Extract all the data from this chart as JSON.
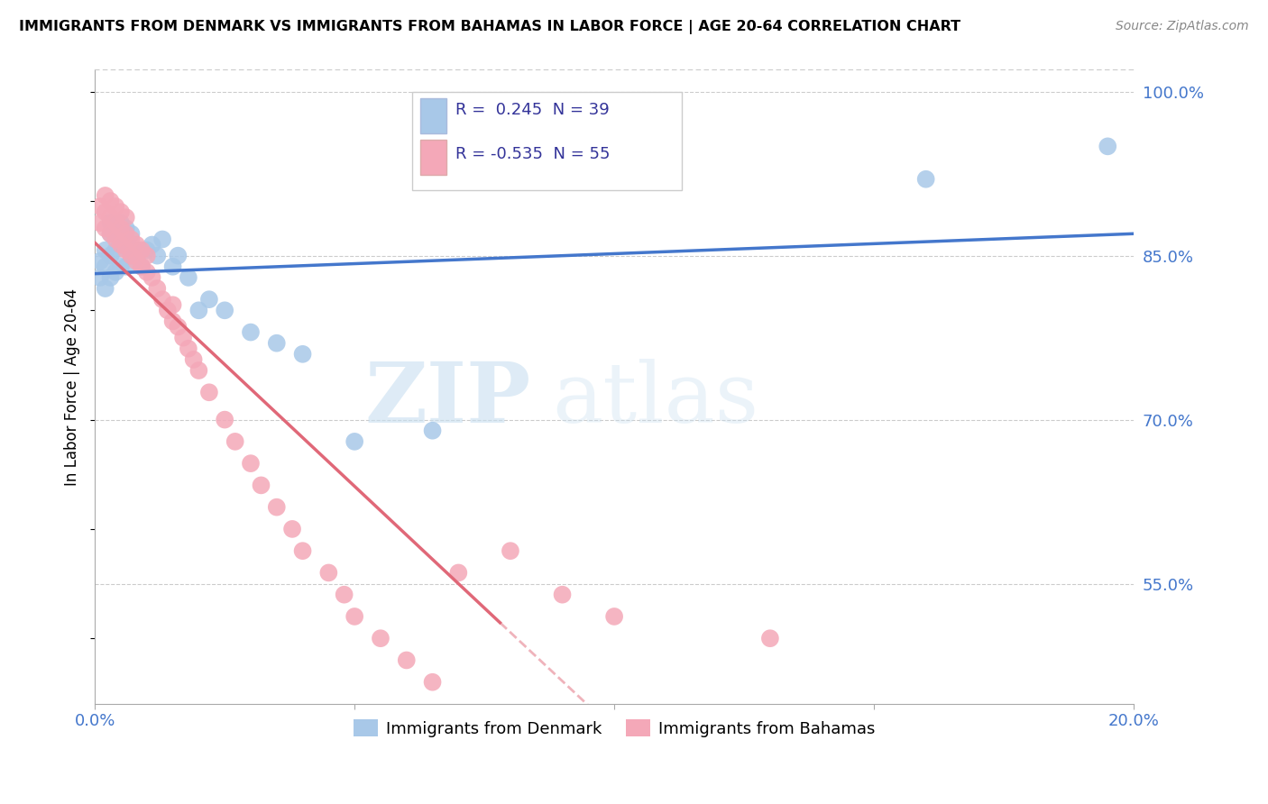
{
  "title": "IMMIGRANTS FROM DENMARK VS IMMIGRANTS FROM BAHAMAS IN LABOR FORCE | AGE 20-64 CORRELATION CHART",
  "source": "Source: ZipAtlas.com",
  "ylabel": "In Labor Force | Age 20-64",
  "xlim": [
    0.0,
    0.2
  ],
  "ylim": [
    0.44,
    1.02
  ],
  "yticks": [
    0.55,
    0.7,
    0.85,
    1.0
  ],
  "yticklabels": [
    "55.0%",
    "70.0%",
    "85.0%",
    "100.0%"
  ],
  "denmark_color": "#a8c8e8",
  "bahamas_color": "#f4a8b8",
  "denmark_line_color": "#4477cc",
  "bahamas_line_color": "#e06878",
  "denmark_R": 0.245,
  "denmark_N": 39,
  "bahamas_R": -0.535,
  "bahamas_N": 55,
  "legend_label_denmark": "Immigrants from Denmark",
  "legend_label_bahamas": "Immigrants from Bahamas",
  "watermark_zip": "ZIP",
  "watermark_atlas": "atlas",
  "background_color": "#ffffff",
  "denmark_x": [
    0.001,
    0.001,
    0.002,
    0.002,
    0.002,
    0.003,
    0.003,
    0.003,
    0.003,
    0.004,
    0.004,
    0.004,
    0.005,
    0.005,
    0.005,
    0.006,
    0.006,
    0.006,
    0.007,
    0.007,
    0.008,
    0.009,
    0.01,
    0.011,
    0.012,
    0.013,
    0.015,
    0.016,
    0.018,
    0.02,
    0.022,
    0.025,
    0.03,
    0.035,
    0.04,
    0.05,
    0.065,
    0.16,
    0.195
  ],
  "denmark_y": [
    0.83,
    0.845,
    0.82,
    0.84,
    0.855,
    0.83,
    0.85,
    0.87,
    0.88,
    0.835,
    0.855,
    0.87,
    0.84,
    0.86,
    0.88,
    0.84,
    0.86,
    0.875,
    0.85,
    0.87,
    0.855,
    0.84,
    0.855,
    0.86,
    0.85,
    0.865,
    0.84,
    0.85,
    0.83,
    0.8,
    0.81,
    0.8,
    0.78,
    0.77,
    0.76,
    0.68,
    0.69,
    0.92,
    0.95
  ],
  "bahamas_x": [
    0.001,
    0.001,
    0.002,
    0.002,
    0.002,
    0.003,
    0.003,
    0.003,
    0.004,
    0.004,
    0.004,
    0.005,
    0.005,
    0.005,
    0.006,
    0.006,
    0.006,
    0.007,
    0.007,
    0.008,
    0.008,
    0.009,
    0.009,
    0.01,
    0.01,
    0.011,
    0.012,
    0.013,
    0.014,
    0.015,
    0.015,
    0.016,
    0.017,
    0.018,
    0.019,
    0.02,
    0.022,
    0.025,
    0.027,
    0.03,
    0.032,
    0.035,
    0.038,
    0.04,
    0.045,
    0.048,
    0.05,
    0.055,
    0.06,
    0.065,
    0.07,
    0.08,
    0.09,
    0.1,
    0.13
  ],
  "bahamas_y": [
    0.88,
    0.895,
    0.875,
    0.89,
    0.905,
    0.87,
    0.885,
    0.9,
    0.865,
    0.88,
    0.895,
    0.86,
    0.875,
    0.89,
    0.855,
    0.87,
    0.885,
    0.85,
    0.865,
    0.845,
    0.86,
    0.84,
    0.855,
    0.835,
    0.85,
    0.83,
    0.82,
    0.81,
    0.8,
    0.79,
    0.805,
    0.785,
    0.775,
    0.765,
    0.755,
    0.745,
    0.725,
    0.7,
    0.68,
    0.66,
    0.64,
    0.62,
    0.6,
    0.58,
    0.56,
    0.54,
    0.52,
    0.5,
    0.48,
    0.46,
    0.56,
    0.58,
    0.54,
    0.52,
    0.5
  ]
}
